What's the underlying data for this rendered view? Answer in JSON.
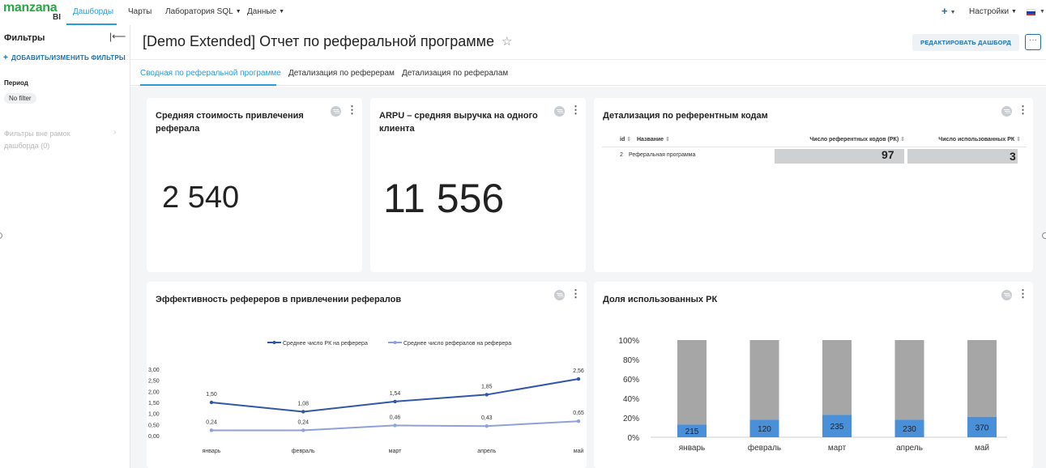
{
  "header": {
    "logo_word": "manzana",
    "logo_bi": "BI",
    "nav": [
      {
        "label": "Дашборды",
        "active": true
      },
      {
        "label": "Чарты",
        "active": false
      },
      {
        "label": "Лаборатория SQL",
        "active": false
      },
      {
        "label": "Данные",
        "active": false
      }
    ],
    "settings_label": "Настройки"
  },
  "sidebar": {
    "title": "Фильтры",
    "add_filters": "ДОБАВИТЬ/ИЗМЕНИТЬ ФИЛЬТРЫ",
    "period_label": "Период",
    "period_value": "No filter",
    "outside_filters": "Фильтры вне рамок дашборда (0)"
  },
  "dashboard": {
    "title": "[Demo Extended] Отчет по реферальной программе",
    "edit_button": "РЕДАКТИРОВАТЬ ДАШБОРД",
    "more_button": "···",
    "tabs": [
      {
        "label": "Сводная по реферальной программе",
        "active": true
      },
      {
        "label": "Детализация по реферерам",
        "active": false
      },
      {
        "label": "Детализация по рефералам",
        "active": false
      }
    ]
  },
  "cards": {
    "cac": {
      "title": "Средняя стоимость привлечения реферала",
      "value": "2 540"
    },
    "arpu": {
      "title": "ARPU – средняя выручка на одного клиента",
      "value": "11 556"
    },
    "codes": {
      "title": "Детализация по референтным кодам",
      "columns": [
        "id",
        "Название",
        "Число референтных кодов (РК)",
        "Число использованных РК"
      ],
      "rows": [
        {
          "id": "2",
          "name": "Реферальная программа",
          "codes": "97",
          "used": "3"
        }
      ]
    },
    "efficiency": {
      "title": "Эффективность рефереров в привлечении рефералов"
    },
    "share": {
      "title": "Доля использованных РК"
    }
  },
  "colors": {
    "accent": "#2a9bd4",
    "brand_green": "#28a745",
    "line_dark": "#3256a8",
    "line_light": "#8ea2d6",
    "bar_gray": "#a6a6a6",
    "bar_blue": "#4a90d9"
  },
  "chart_data": [
    {
      "type": "line",
      "categories": [
        "январь",
        "февраль",
        "март",
        "апрель",
        "май"
      ],
      "series": [
        {
          "name": "Среднее число РК на реферера",
          "values": [
            1.5,
            1.08,
            1.54,
            1.85,
            2.56
          ],
          "labels": [
            "1,50",
            "1,08",
            "1,54",
            "1,85",
            "2,56"
          ],
          "color": "#3256a8"
        },
        {
          "name": "Среднее число рефералов на реферера",
          "values": [
            0.24,
            0.24,
            0.46,
            0.43,
            0.65
          ],
          "labels": [
            "0,24",
            "0,24",
            "0,46",
            "0,43",
            "0,65"
          ],
          "color": "#8ea2d6"
        }
      ],
      "yticks": [
        "0,00",
        "0,50",
        "1,00",
        "1,50",
        "2,00",
        "2,50",
        "3,00"
      ],
      "ylim": [
        0,
        3
      ],
      "grid": false,
      "legend": "top"
    },
    {
      "type": "bar",
      "stacked": true,
      "categories": [
        "январь",
        "февраль",
        "март",
        "апрель",
        "май"
      ],
      "used_share": [
        0.13,
        0.18,
        0.23,
        0.18,
        0.21
      ],
      "used_labels": [
        "215",
        "120",
        "235",
        "230",
        "370"
      ],
      "yticks": [
        "0%",
        "20%",
        "40%",
        "60%",
        "80%",
        "100%"
      ],
      "ylim": [
        0,
        1
      ]
    }
  ]
}
